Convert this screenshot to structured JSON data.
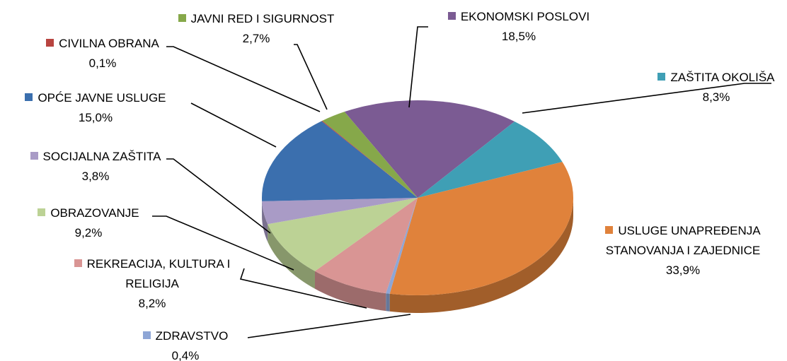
{
  "chart_data": {
    "type": "pie",
    "categories": [
      "EKONOMSKI POSLOVI",
      "ZAŠTITA OKOLIŠA",
      "USLUGE UNAPREĐENJA STANOVANJA I ZAJEDNICE",
      "ZDRAVSTVO",
      "REKREACIJA, KULTURA I RELIGIJA",
      "OBRAZOVANJE",
      "SOCIJALNA ZAŠTITA",
      "OPĆE JAVNE USLUGE",
      "CIVILNA OBRANA",
      "JAVNI RED I SIGURNOST"
    ],
    "values": [
      18.5,
      8.3,
      33.9,
      0.4,
      8.2,
      9.2,
      3.8,
      15.0,
      0.1,
      2.7
    ],
    "value_labels": [
      "18,5%",
      "8,3%",
      "33,9%",
      "0,4%",
      "8,2%",
      "9,2%",
      "3,8%",
      "15,0%",
      "0,1%",
      "2,7%"
    ],
    "colors": [
      "#7b5b93",
      "#3f9fb5",
      "#e0823b",
      "#8ea6d6",
      "#d99594",
      "#bcd295",
      "#a99bc6",
      "#3b6fae",
      "#b84440",
      "#86a84a"
    ]
  }
}
